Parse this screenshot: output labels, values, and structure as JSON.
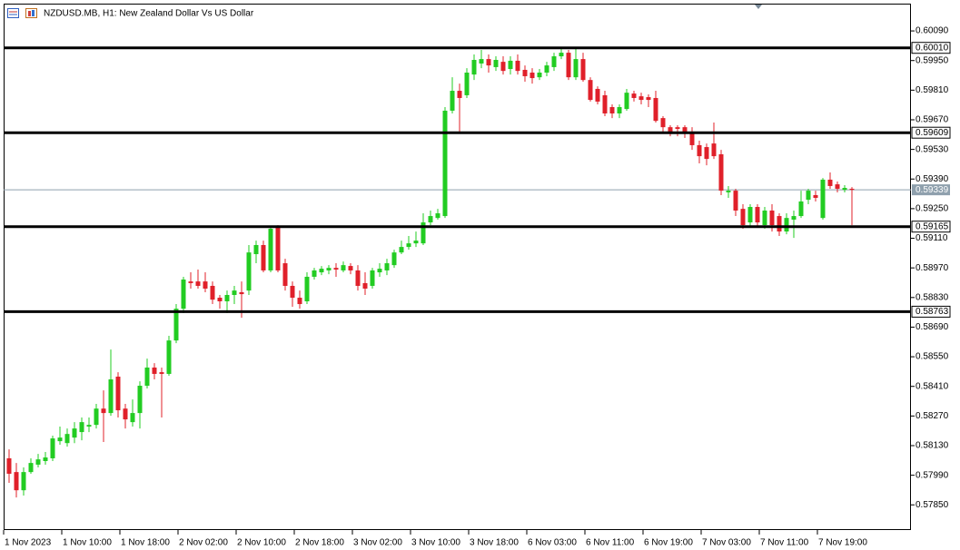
{
  "chart_data": {
    "type": "candlestick",
    "title": "NZDUSD.MB, H1:  New Zealand Dollar Vs US Dollar",
    "categories": [
      "1 Nov 2023",
      null,
      null,
      null,
      null,
      null,
      null,
      null,
      "1 Nov 10:00",
      null,
      null,
      null,
      null,
      null,
      null,
      null,
      "1 Nov 18:00",
      null,
      null,
      null,
      null,
      null,
      null,
      null,
      "2 Nov 02:00",
      null,
      null,
      null,
      null,
      null,
      null,
      null,
      "2 Nov 10:00",
      null,
      null,
      null,
      null,
      null,
      null,
      null,
      "2 Nov 18:00",
      null,
      null,
      null,
      null,
      null,
      null,
      null,
      "3 Nov 02:00",
      null,
      null,
      null,
      null,
      null,
      null,
      null,
      "3 Nov 10:00",
      null,
      null,
      null,
      null,
      null,
      null,
      null,
      "3 Nov 18:00",
      null,
      null,
      null,
      null,
      null,
      null,
      null,
      "6 Nov 03:00",
      null,
      null,
      null,
      null,
      null,
      null,
      null,
      "6 Nov 11:00",
      null,
      null,
      null,
      null,
      null,
      null,
      null,
      "6 Nov 19:00",
      null,
      null,
      null,
      null,
      null,
      null,
      null,
      "7 Nov 03:00",
      null,
      null,
      null,
      null,
      null,
      null,
      null,
      "7 Nov 11:00",
      null,
      null,
      null,
      null,
      null,
      null,
      null,
      "7 Nov 19:00",
      null,
      null,
      null,
      null
    ],
    "open": [
      0.5807,
      0.58005,
      0.57919,
      0.58005,
      0.5804,
      0.58057,
      0.5807,
      0.58151,
      0.58142,
      0.58168,
      0.58194,
      0.5822,
      0.58228,
      0.58305,
      0.58284,
      0.58456,
      0.58305,
      0.58241,
      0.58284,
      0.58413,
      0.58499,
      0.58477,
      0.58469,
      0.58627,
      0.58777,
      0.58906,
      0.58906,
      0.58906,
      0.58885,
      0.58829,
      0.58812,
      0.58842,
      0.58855,
      0.58863,
      0.59035,
      0.59078,
      0.58958,
      0.59163,
      0.58992,
      0.58885,
      0.58829,
      0.58812,
      0.58928,
      0.58949,
      0.58958,
      0.5897,
      0.58958,
      0.58979,
      0.58958,
      0.58898,
      0.58885,
      0.58949,
      0.58958,
      0.58983,
      0.59043,
      0.59069,
      0.59086,
      0.59086,
      0.59185,
      0.59206,
      0.59215,
      0.59713,
      0.59807,
      0.59786,
      0.59884,
      0.59936,
      0.59957,
      0.59919,
      0.59944,
      0.5991,
      0.59949,
      0.59906,
      0.59893,
      0.59871,
      0.59893,
      0.59919,
      0.5997,
      0.59987,
      0.59871,
      0.59957,
      0.59858,
      0.59816,
      0.59786,
      0.5973,
      0.597,
      0.59721,
      0.59794,
      0.59781,
      0.59777,
      0.59773,
      0.59678,
      0.59635,
      0.59635,
      0.59635,
      0.59614,
      0.5955,
      0.59541,
      0.59558,
      0.59507,
      0.59327,
      0.59335,
      0.59249,
      0.59185,
      0.59258,
      0.59172,
      0.59241,
      0.59215,
      0.59142,
      0.59198,
      0.59215,
      0.59292,
      0.59314,
      0.59206,
      0.59387,
      0.59365,
      0.59339,
      0.59344
    ],
    "high": [
      0.58112,
      0.58048,
      0.58027,
      0.5807,
      0.58091,
      0.581,
      0.58177,
      0.5822,
      0.58211,
      0.58241,
      0.58263,
      0.58263,
      0.58327,
      0.58391,
      0.58584,
      0.58477,
      0.58327,
      0.58348,
      0.58434,
      0.58541,
      0.5852,
      0.58499,
      0.58649,
      0.58799,
      0.58928,
      0.58949,
      0.58962,
      0.58949,
      0.58906,
      0.58842,
      0.58863,
      0.58885,
      0.58906,
      0.59078,
      0.59099,
      0.59099,
      0.59163,
      0.59172,
      0.59013,
      0.58906,
      0.58863,
      0.58949,
      0.5897,
      0.58979,
      0.58983,
      0.58992,
      0.59,
      0.58992,
      0.58983,
      0.58949,
      0.5897,
      0.58992,
      0.59013,
      0.59056,
      0.59099,
      0.59121,
      0.59142,
      0.59228,
      0.59241,
      0.59249,
      0.5973,
      0.59871,
      0.59841,
      0.59914,
      0.59979,
      0.6,
      0.59979,
      0.5997,
      0.5997,
      0.5997,
      0.59979,
      0.59927,
      0.59914,
      0.5991,
      0.59944,
      0.59987,
      0.60013,
      0.6,
      0.60013,
      0.59987,
      0.59871,
      0.59828,
      0.59807,
      0.59743,
      0.59743,
      0.59816,
      0.59807,
      0.59798,
      0.5979,
      0.59807,
      0.59687,
      0.59644,
      0.59644,
      0.59644,
      0.59635,
      0.59571,
      0.59558,
      0.59657,
      0.59528,
      0.59357,
      0.59344,
      0.59271,
      0.59271,
      0.59271,
      0.59258,
      0.59271,
      0.59228,
      0.59228,
      0.59241,
      0.59335,
      0.59344,
      0.59335,
      0.59395,
      0.59421,
      0.59378,
      0.59361,
      0.59352
    ],
    "low": [
      0.57954,
      0.57885,
      0.57894,
      0.57997,
      0.58027,
      0.5804,
      0.58057,
      0.58134,
      0.58125,
      0.58142,
      0.58155,
      0.58194,
      0.58211,
      0.58147,
      0.58271,
      0.58263,
      0.58211,
      0.5822,
      0.58211,
      0.584,
      0.58443,
      0.58263,
      0.5846,
      0.58614,
      0.58756,
      0.58872,
      0.58872,
      0.58855,
      0.58799,
      0.58777,
      0.58756,
      0.58799,
      0.58734,
      0.58842,
      0.58992,
      0.58949,
      0.58949,
      0.58949,
      0.58863,
      0.58786,
      0.58777,
      0.58799,
      0.58915,
      0.58936,
      0.5894,
      0.58928,
      0.58949,
      0.5894,
      0.58863,
      0.58842,
      0.58872,
      0.58928,
      0.58936,
      0.5897,
      0.59035,
      0.59056,
      0.59069,
      0.59078,
      0.59172,
      0.59198,
      0.59206,
      0.597,
      0.59614,
      0.59773,
      0.59858,
      0.59914,
      0.59893,
      0.59901,
      0.59884,
      0.59884,
      0.59884,
      0.5985,
      0.59841,
      0.59858,
      0.59876,
      0.59901,
      0.59957,
      0.59858,
      0.59858,
      0.5985,
      0.59756,
      0.59743,
      0.59687,
      0.59678,
      0.59678,
      0.59713,
      0.59756,
      0.59743,
      0.5973,
      0.59657,
      0.59614,
      0.59592,
      0.59592,
      0.59584,
      0.59528,
      0.59464,
      0.59455,
      0.59485,
      0.59314,
      0.59301,
      0.59215,
      0.59155,
      0.59163,
      0.59163,
      0.59155,
      0.59142,
      0.59121,
      0.59129,
      0.59112,
      0.59206,
      0.59271,
      0.59284,
      0.59198,
      0.59344,
      0.59327,
      0.59327,
      0.59172
    ],
    "close": [
      0.57997,
      0.57919,
      0.58005,
      0.58048,
      0.58065,
      0.58074,
      0.58164,
      0.58168,
      0.58185,
      0.58211,
      0.58241,
      0.58228,
      0.58305,
      0.58284,
      0.58443,
      0.58297,
      0.58254,
      0.58284,
      0.58413,
      0.58499,
      0.58469,
      0.58469,
      0.58627,
      0.58777,
      0.58915,
      0.58898,
      0.58885,
      0.58872,
      0.5882,
      0.58812,
      0.58842,
      0.58863,
      0.58846,
      0.59043,
      0.59078,
      0.58958,
      0.59155,
      0.58958,
      0.58885,
      0.58829,
      0.58799,
      0.58928,
      0.58958,
      0.58966,
      0.5897,
      0.58962,
      0.58983,
      0.58958,
      0.58885,
      0.58872,
      0.58958,
      0.58966,
      0.58992,
      0.59043,
      0.59069,
      0.59086,
      0.59099,
      0.59185,
      0.59215,
      0.59228,
      0.59713,
      0.59807,
      0.59773,
      0.59893,
      0.59953,
      0.59957,
      0.59927,
      0.59953,
      0.59901,
      0.59949,
      0.59901,
      0.59876,
      0.59867,
      0.59893,
      0.59927,
      0.5997,
      0.59987,
      0.59871,
      0.59957,
      0.59858,
      0.59764,
      0.59756,
      0.597,
      0.597,
      0.5973,
      0.59798,
      0.59773,
      0.59764,
      0.59764,
      0.59665,
      0.59635,
      0.59614,
      0.59627,
      0.59614,
      0.5955,
      0.59498,
      0.59485,
      0.59498,
      0.59335,
      0.59335,
      0.59241,
      0.59172,
      0.59258,
      0.59185,
      0.59241,
      0.59172,
      0.59142,
      0.59206,
      0.59215,
      0.59284,
      0.59335,
      0.59301,
      0.59387,
      0.59357,
      0.59344,
      0.59348,
      0.59339
    ],
    "up_color": "#22cc22",
    "down_color": "#e0202a",
    "ylim": [
      0.57731,
      0.60219
    ],
    "yticks": [
      {
        "value": 0.6009,
        "label": "0.60090"
      },
      {
        "value": 0.5995,
        "label": "0.59950"
      },
      {
        "value": 0.5981,
        "label": "0.59810"
      },
      {
        "value": 0.5967,
        "label": "0.59670"
      },
      {
        "value": 0.5953,
        "label": "0.59530"
      },
      {
        "value": 0.5939,
        "label": "0.59390"
      },
      {
        "value": 0.5925,
        "label": "0.59250"
      },
      {
        "value": 0.5911,
        "label": "0.59110"
      },
      {
        "value": 0.5897,
        "label": "0.58970"
      },
      {
        "value": 0.5883,
        "label": "0.58830"
      },
      {
        "value": 0.5869,
        "label": "0.58690"
      },
      {
        "value": 0.5855,
        "label": "0.58550"
      },
      {
        "value": 0.5841,
        "label": "0.58410"
      },
      {
        "value": 0.5827,
        "label": "0.58270"
      },
      {
        "value": 0.5813,
        "label": "0.58130"
      },
      {
        "value": 0.5799,
        "label": "0.57990"
      },
      {
        "value": 0.5785,
        "label": "0.57850"
      }
    ],
    "levels": [
      {
        "value": 0.6001,
        "label": "0.60010"
      },
      {
        "value": 0.59609,
        "label": "0.59609"
      },
      {
        "value": 0.59165,
        "label": "0.59165"
      },
      {
        "value": 0.58763,
        "label": "0.58763"
      }
    ],
    "last_price": {
      "value": 0.59339,
      "label": "0.59339"
    }
  }
}
